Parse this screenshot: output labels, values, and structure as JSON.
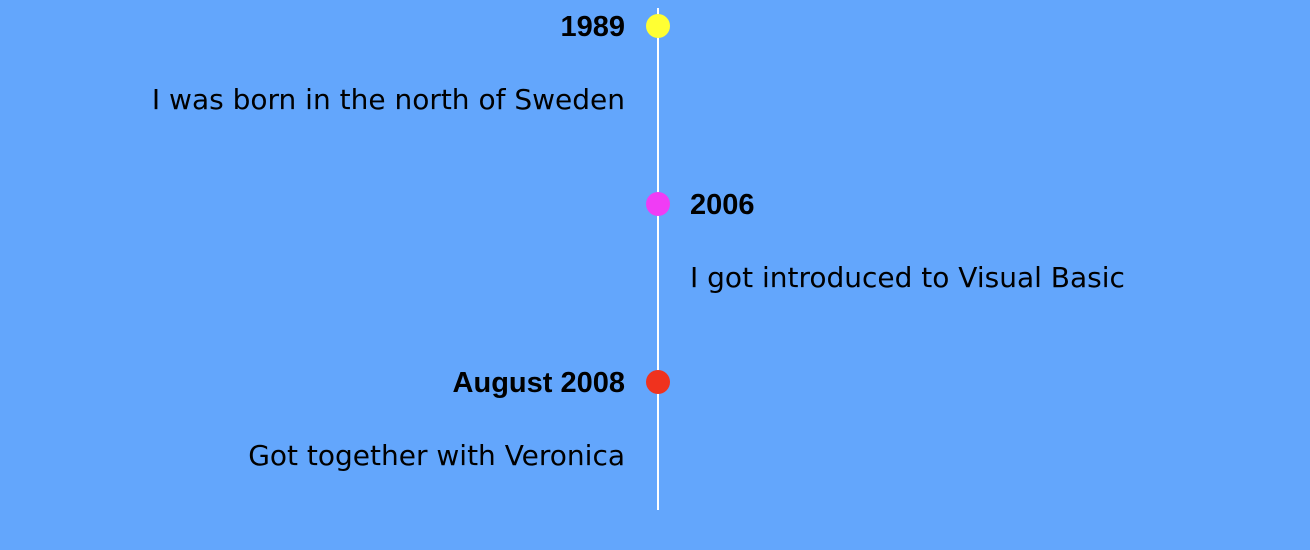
{
  "colors": {
    "background": "#63a6fc",
    "line": "#ffffff",
    "text": "#000000"
  },
  "events": [
    {
      "year": "1989",
      "description": "I was born in the north of Sweden",
      "side": "left",
      "dot_color": "#ffff33"
    },
    {
      "year": "2006",
      "description": "I got introduced to Visual Basic",
      "side": "right",
      "dot_color": "#f03cf5"
    },
    {
      "year": "August 2008",
      "description": "Got together with Veronica",
      "side": "left",
      "dot_color": "#f0321e"
    }
  ]
}
